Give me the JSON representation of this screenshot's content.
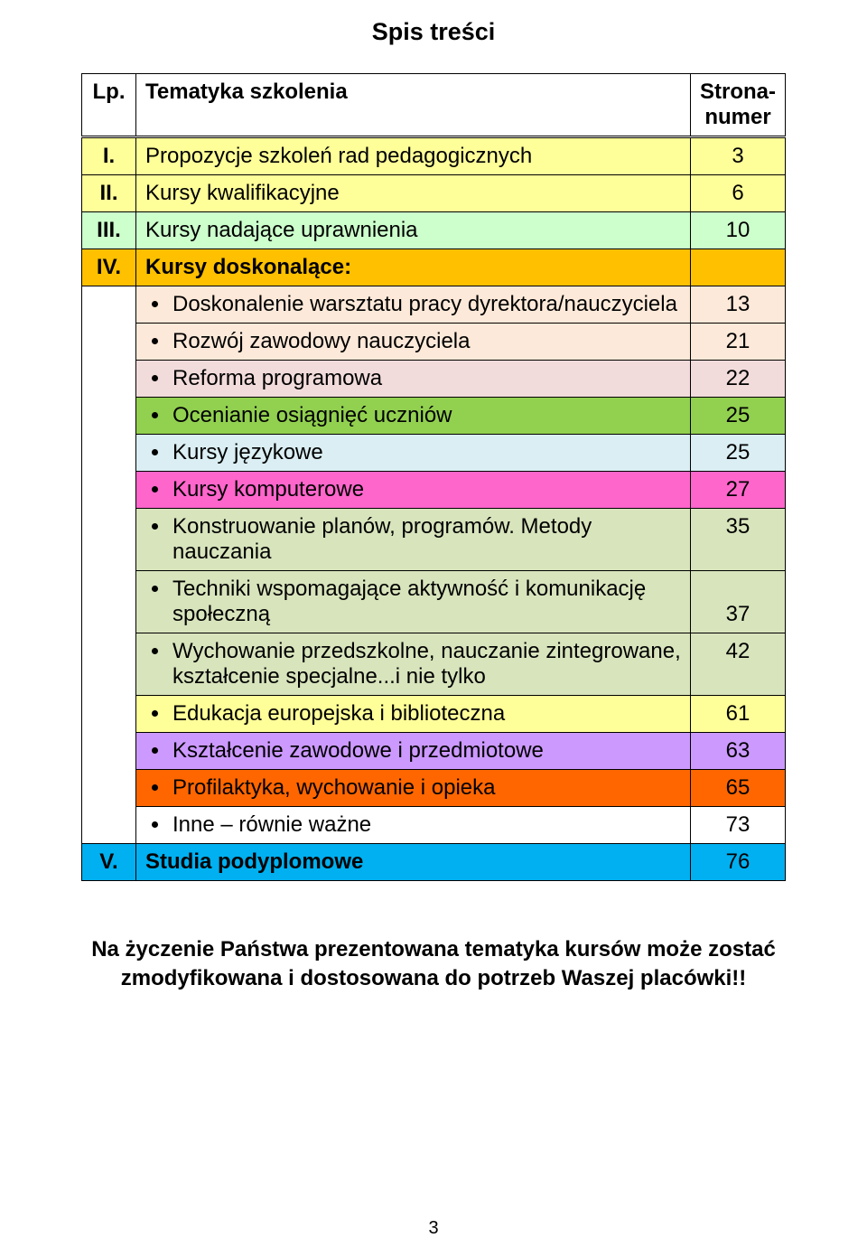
{
  "title": "Spis treści",
  "header": {
    "lp": "Lp.",
    "topic": "Tematyka szkolenia",
    "page": "Strona-\nnumer"
  },
  "rows": {
    "r1": {
      "lp": "I.",
      "text": "Propozycje szkoleń rad pedagogicznych",
      "num": "3"
    },
    "r2": {
      "lp": "II.",
      "text": "Kursy kwalifikacyjne",
      "num": "6"
    },
    "r3": {
      "lp": "III.",
      "text": "Kursy nadające uprawnienia",
      "num": "10"
    },
    "r4": {
      "lp": "IV.",
      "text": "Kursy doskonalące:",
      "num": ""
    },
    "sub": {
      "s1": {
        "text": "Doskonalenie warsztatu pracy dyrektora/nauczyciela",
        "num": "13"
      },
      "s2": {
        "text": "Rozwój zawodowy nauczyciela",
        "num": "21"
      },
      "s3": {
        "text": "Reforma programowa",
        "num": "22"
      },
      "s4": {
        "text": "Ocenianie osiągnięć uczniów",
        "num": "25"
      },
      "s5": {
        "text": "Kursy językowe",
        "num": "25"
      },
      "s6": {
        "text": "Kursy komputerowe",
        "num": "27"
      },
      "s7": {
        "text": "Konstruowanie planów, programów. Metody nauczania",
        "num": "35"
      },
      "s8": {
        "text": "Techniki wspomagające aktywność i komunikację społeczną",
        "num": "37"
      },
      "s9": {
        "text": "Wychowanie przedszkolne, nauczanie zintegrowane, kształcenie specjalne...i nie tylko",
        "num": "42"
      },
      "s10": {
        "text": "Edukacja europejska i biblioteczna",
        "num": "61"
      },
      "s11": {
        "text": "Kształcenie zawodowe i przedmiotowe",
        "num": "63"
      },
      "s12": {
        "text": "Profilaktyka, wychowanie i opieka",
        "num": "65"
      },
      "s13": {
        "text": "Inne – równie ważne",
        "num": "73"
      }
    },
    "r5": {
      "lp": "V.",
      "text": "Studia podyplomowe",
      "num": "76"
    }
  },
  "colors": {
    "header_bg": "#ffffff",
    "r1_bg": "#ffff99",
    "r2_bg": "#ffff99",
    "r3_bg": "#ccffcc",
    "r4_bg": "#ffc000",
    "s1_bg": "#fde9d9",
    "s2_bg": "#fde9d9",
    "s3_bg": "#f2dcdb",
    "s4_bg": "#92d050",
    "s5_bg": "#daeef3",
    "s6_bg": "#ff66cc",
    "s7_bg": "#d8e4bc",
    "s8_bg": "#d8e4bc",
    "s9_bg": "#d8e4bc",
    "s10_bg": "#ffff99",
    "s11_bg": "#cc99ff",
    "s12_bg": "#ff6600",
    "s13_bg": "#ffffff",
    "r5_bg": "#00b0f0",
    "lp_bg": "#ffffff"
  },
  "footnote": "Na życzenie Państwa prezentowana tematyka kursów może zostać zmodyfikowana i dostosowana do  potrzeb Waszej placówki!!",
  "pagenum": "3"
}
